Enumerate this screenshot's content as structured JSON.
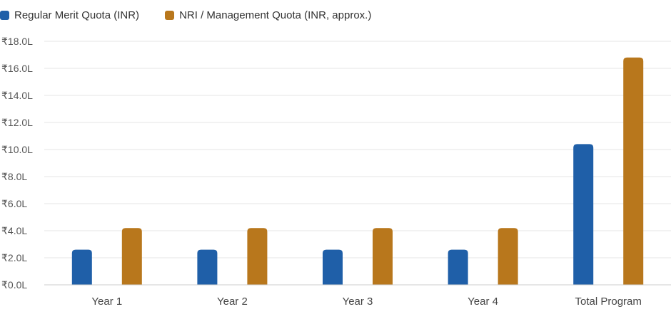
{
  "chart_data": {
    "type": "bar",
    "categories": [
      "Year 1",
      "Year 2",
      "Year 3",
      "Year 4",
      "Total Program"
    ],
    "series": [
      {
        "name": "Regular Merit Quota (INR)",
        "color": "#1f5fa8",
        "values": [
          2.6,
          2.6,
          2.6,
          2.6,
          10.4
        ]
      },
      {
        "name": "NRI / Management Quota (INR, approx.)",
        "color": "#b8771c",
        "values": [
          4.2,
          4.2,
          4.2,
          4.2,
          16.8
        ]
      }
    ],
    "ylim": [
      0,
      18
    ],
    "y_ticks": [
      {
        "value": 0,
        "label": "₹0.0L"
      },
      {
        "value": 2,
        "label": "₹2.0L"
      },
      {
        "value": 4,
        "label": "₹4.0L"
      },
      {
        "value": 6,
        "label": "₹6.0L"
      },
      {
        "value": 8,
        "label": "₹8.0L"
      },
      {
        "value": 10,
        "label": "₹10.0L"
      },
      {
        "value": 12,
        "label": "₹12.0L"
      },
      {
        "value": 14,
        "label": "₹14.0L"
      },
      {
        "value": 16,
        "label": "₹16.0L"
      },
      {
        "value": 18,
        "label": "₹18.0L"
      }
    ],
    "grid": true,
    "legend_position": "top-left"
  }
}
